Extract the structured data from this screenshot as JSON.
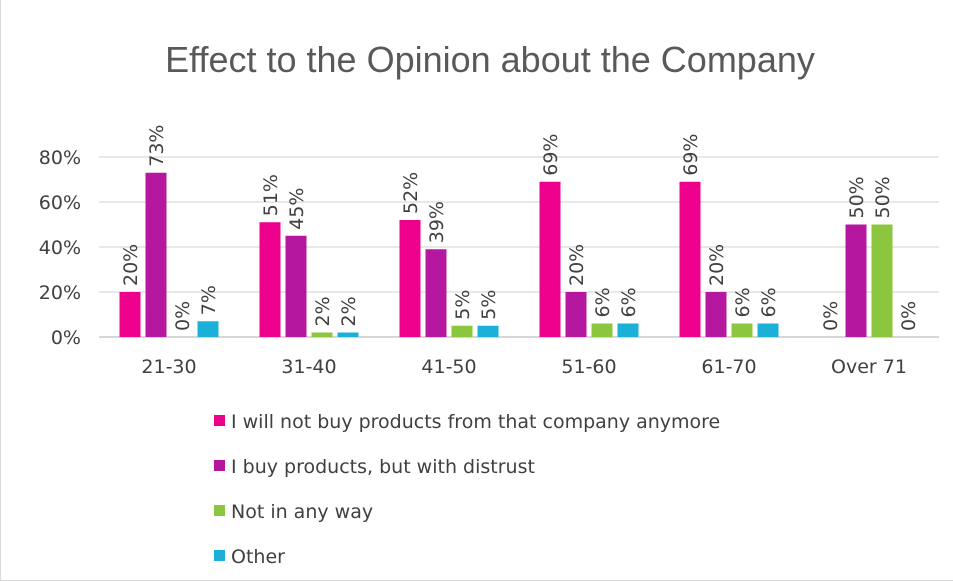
{
  "chart_data": {
    "type": "bar",
    "title": "Effect to the Opinion about the Company",
    "categories": [
      "21-30",
      "31-40",
      "41-50",
      "51-60",
      "61-70",
      "Over 71"
    ],
    "series": [
      {
        "name": "I will not buy products from that company anymore",
        "values": [
          20,
          51,
          52,
          69,
          69,
          0
        ],
        "labels": [
          "20%",
          "51%",
          "52%",
          "69%",
          "69%",
          "0%"
        ],
        "color": "#ec008c"
      },
      {
        "name": "I buy products, but with distrust",
        "values": [
          73,
          45,
          39,
          20,
          20,
          50
        ],
        "labels": [
          "73%",
          "45%",
          "39%",
          "20%",
          "20%",
          "50%"
        ],
        "color": "#b5179e"
      },
      {
        "name": "Not in any way",
        "values": [
          0,
          2,
          5,
          6,
          6,
          50
        ],
        "labels": [
          "0%",
          "2%",
          "5%",
          "6%",
          "6%",
          "50%"
        ],
        "color": "#8cc63f"
      },
      {
        "name": "Other",
        "values": [
          7,
          2,
          5,
          6,
          6,
          0
        ],
        "labels": [
          "7%",
          "2%",
          "5%",
          "6%",
          "6%",
          "0%"
        ],
        "color": "#1ab0d8"
      }
    ],
    "yticks": [
      "0%",
      "20%",
      "40%",
      "60%",
      "80%"
    ],
    "ytick_values": [
      0,
      20,
      40,
      60,
      80
    ],
    "ylim": [
      0,
      80
    ],
    "grid": true,
    "legend_position": "bottom",
    "data_labels": true
  }
}
